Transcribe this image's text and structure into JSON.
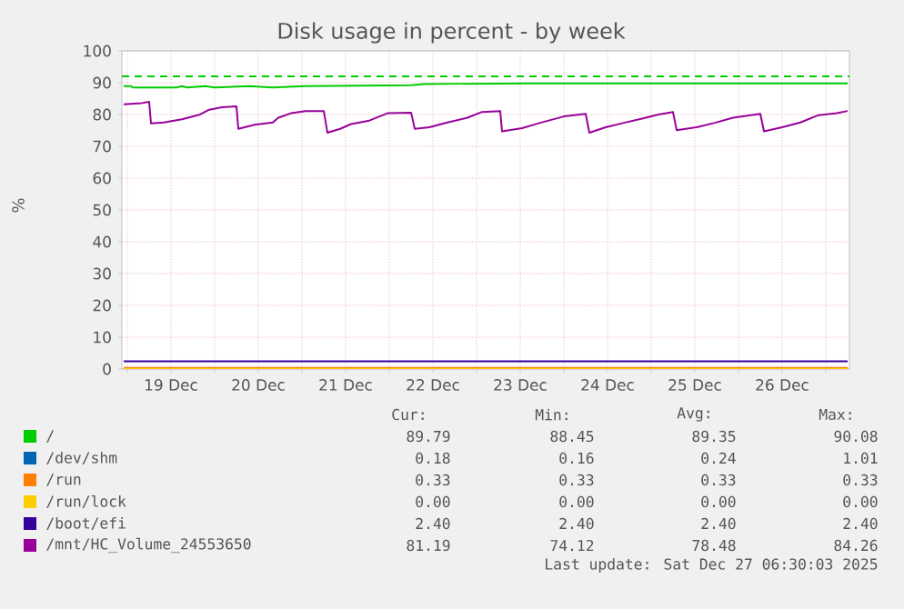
{
  "chart_data": {
    "type": "line",
    "title": "Disk usage in percent - by week",
    "ylabel": "%",
    "xlim": [
      "2025-12-18T22:30",
      "2025-12-27T06:30"
    ],
    "xticks": [
      {
        "value": "2025-12-19T00:00",
        "label": null
      },
      {
        "value": "2025-12-19T12:00",
        "label": "19 Dec"
      },
      {
        "value": "2025-12-20T00:00",
        "label": null
      },
      {
        "value": "2025-12-20T12:00",
        "label": "20 Dec"
      },
      {
        "value": "2025-12-21T00:00",
        "label": null
      },
      {
        "value": "2025-12-21T12:00",
        "label": "21 Dec"
      },
      {
        "value": "2025-12-22T00:00",
        "label": null
      },
      {
        "value": "2025-12-22T12:00",
        "label": "22 Dec"
      },
      {
        "value": "2025-12-23T00:00",
        "label": null
      },
      {
        "value": "2025-12-23T12:00",
        "label": "23 Dec"
      },
      {
        "value": "2025-12-24T00:00",
        "label": null
      },
      {
        "value": "2025-12-24T12:00",
        "label": "24 Dec"
      },
      {
        "value": "2025-12-25T00:00",
        "label": null
      },
      {
        "value": "2025-12-25T12:00",
        "label": "25 Dec"
      },
      {
        "value": "2025-12-26T00:00",
        "label": null
      },
      {
        "value": "2025-12-26T12:00",
        "label": "26 Dec"
      },
      {
        "value": "2025-12-27T00:00",
        "label": null
      }
    ],
    "ylim": [
      0,
      100
    ],
    "yticks": [
      0,
      10,
      20,
      30,
      40,
      50,
      60,
      70,
      80,
      90,
      100
    ],
    "grid": true,
    "legend": "bottom",
    "line_style": "solid",
    "series": [
      {
        "name": "/",
        "color": "#00cc00",
        "x": [
          "2025-12-18T23:00",
          "2025-12-19T01:00",
          "2025-12-19T01:30",
          "2025-12-19T13:30",
          "2025-12-19T15:00",
          "2025-12-19T16:30",
          "2025-12-19T21:30",
          "2025-12-20T00:00",
          "2025-12-20T09:30",
          "2025-12-20T16:00",
          "2025-12-21T00:30",
          "2025-12-22T06:00",
          "2025-12-22T09:30",
          "2025-12-23T14:00",
          "2025-12-27T06:00"
        ],
        "values": [
          88.9,
          88.9,
          88.5,
          88.5,
          88.9,
          88.5,
          88.9,
          88.5,
          88.9,
          88.5,
          88.9,
          89.2,
          89.6,
          89.8,
          89.8
        ]
      },
      {
        "name": "/dev/shm",
        "color": "#0066b3"
      },
      {
        "name": "/run",
        "color": "#ff8000",
        "x": [
          "2025-12-18T23:00",
          "2025-12-27T06:00"
        ],
        "values": [
          0.33,
          0.33
        ]
      },
      {
        "name": "/run/lock",
        "color": "#ffcc00",
        "x": [
          "2025-12-18T23:00",
          "2025-12-27T06:00"
        ],
        "values": [
          0,
          0
        ]
      },
      {
        "name": "/boot/efi",
        "color": "#330099",
        "x": [
          "2025-12-18T23:00",
          "2025-12-27T06:00"
        ],
        "values": [
          2.4,
          2.4
        ]
      },
      {
        "name": "/mnt/HC_Volume_24553650",
        "color": "#990099",
        "x": [
          "2025-12-18T23:00",
          "2025-12-19T04:00",
          "2025-12-19T06:00",
          "2025-12-19T06:30",
          "2025-12-19T10:00",
          "2025-12-19T15:00",
          "2025-12-19T20:00",
          "2025-12-19T22:30",
          "2025-12-20T02:00",
          "2025-12-20T06:00",
          "2025-12-20T06:30",
          "2025-12-20T11:00",
          "2025-12-20T16:00",
          "2025-12-20T17:30",
          "2025-12-20T21:00",
          "2025-12-21T01:00",
          "2025-12-21T06:00",
          "2025-12-21T07:00",
          "2025-12-21T10:30",
          "2025-12-21T13:30",
          "2025-12-21T18:30",
          "2025-12-21T23:30",
          "2025-12-22T06:00",
          "2025-12-22T07:00",
          "2025-12-22T11:00",
          "2025-12-22T16:00",
          "2025-12-22T21:30",
          "2025-12-23T01:30",
          "2025-12-23T06:30",
          "2025-12-23T07:00",
          "2025-12-23T12:30",
          "2025-12-23T17:30",
          "2025-12-24T00:00",
          "2025-12-24T06:00",
          "2025-12-24T07:00",
          "2025-12-24T11:30",
          "2025-12-24T16:30",
          "2025-12-24T21:30",
          "2025-12-25T02:00",
          "2025-12-25T06:00",
          "2025-12-25T07:00",
          "2025-12-25T12:30",
          "2025-12-25T17:30",
          "2025-12-25T22:30",
          "2025-12-26T03:30",
          "2025-12-26T06:00",
          "2025-12-26T07:00",
          "2025-12-26T12:00",
          "2025-12-26T17:00",
          "2025-12-26T22:00",
          "2025-12-27T03:00",
          "2025-12-27T06:00"
        ],
        "values": [
          83.2,
          83.6,
          84,
          77.2,
          77.5,
          78.5,
          80,
          81.5,
          82.3,
          82.6,
          75.5,
          76.8,
          77.5,
          79,
          80.4,
          81.1,
          81.1,
          74.3,
          75.5,
          77,
          78.1,
          80.4,
          80.6,
          75.5,
          76,
          77.5,
          79,
          80.8,
          81.1,
          74.7,
          75.7,
          77.4,
          79.4,
          80.2,
          74.3,
          76,
          77.4,
          78.7,
          80,
          80.8,
          75.1,
          76,
          77.4,
          79,
          79.8,
          80.2,
          74.7,
          76,
          77.5,
          79.8,
          80.4,
          81.1
        ]
      }
    ],
    "ref_lines": [
      {
        "axis": "y",
        "value": 92,
        "color": "#00cc00",
        "line_style": "dashed"
      }
    ],
    "annotations": [
      "Cur:",
      "Min:",
      "Avg:",
      "Max:",
      "89.79",
      "88.45",
      "89.35",
      "90.08",
      "0.18",
      "0.16",
      "0.24",
      "1.01",
      "0.33",
      "0.33",
      "0.33",
      "0.33",
      "0.00",
      "0.00",
      "0.00",
      "0.00",
      "2.40",
      "2.40",
      "2.40",
      "2.40",
      "81.19",
      "74.12",
      "78.48",
      "84.26",
      "Last update: Sat Dec 27 06:30:03 2025"
    ]
  }
}
